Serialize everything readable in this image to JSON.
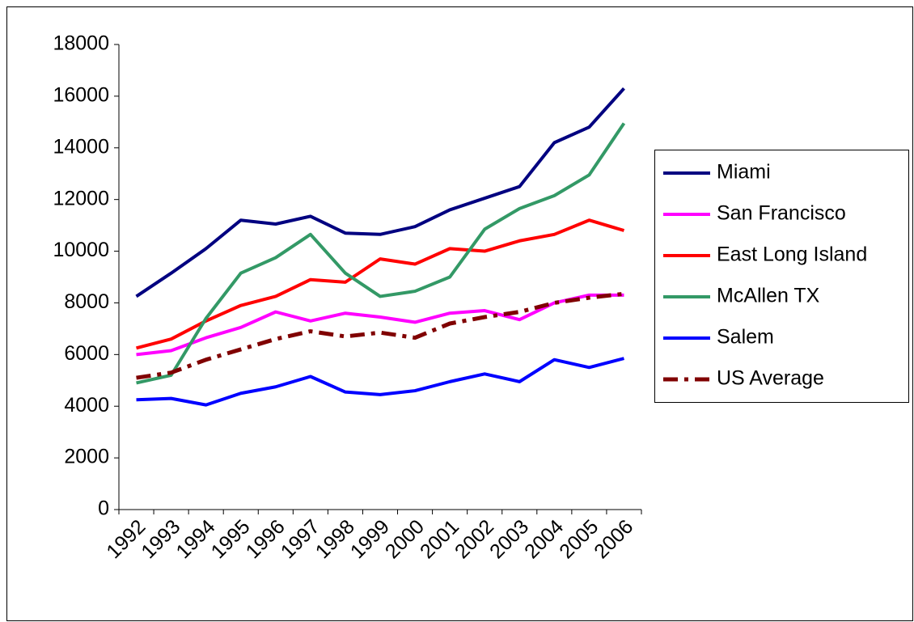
{
  "chart_data": {
    "type": "line",
    "categories": [
      "1992",
      "1993",
      "1994",
      "1995",
      "1996",
      "1997",
      "1998",
      "1999",
      "2000",
      "2001",
      "2002",
      "2003",
      "2004",
      "2005",
      "2006"
    ],
    "series": [
      {
        "name": "Miami",
        "color": "#000080",
        "values": [
          8250,
          9150,
          10100,
          11200,
          11050,
          11350,
          10700,
          10650,
          10950,
          11600,
          12050,
          12500,
          14200,
          14800,
          16300
        ]
      },
      {
        "name": "San Francisco",
        "color": "#ff00ff",
        "values": [
          6000,
          6150,
          6650,
          7050,
          7650,
          7300,
          7600,
          7450,
          7250,
          7600,
          7700,
          7350,
          8000,
          8300,
          8300
        ]
      },
      {
        "name": "East Long Island",
        "color": "#ff0000",
        "values": [
          6250,
          6600,
          7300,
          7900,
          8250,
          8900,
          8800,
          9700,
          9500,
          10100,
          10000,
          10400,
          10650,
          11200,
          10800
        ]
      },
      {
        "name": "McAllen TX",
        "color": "#339966",
        "values": [
          4900,
          5200,
          7400,
          9150,
          9750,
          10650,
          9150,
          8250,
          8450,
          9000,
          10850,
          11650,
          12150,
          12950,
          14950
        ]
      },
      {
        "name": "Salem",
        "color": "#0000ff",
        "values": [
          4250,
          4300,
          4050,
          4500,
          4750,
          5150,
          4550,
          4450,
          4600,
          4950,
          5250,
          4950,
          5800,
          5500,
          5850
        ]
      },
      {
        "name": "US Average",
        "color": "#800000",
        "dash": true,
        "values": [
          5100,
          5300,
          5800,
          6200,
          6600,
          6900,
          6700,
          6850,
          6650,
          7200,
          7450,
          7650,
          8000,
          8200,
          8350
        ]
      }
    ],
    "ylim": [
      0,
      18000
    ],
    "yticks": [
      0,
      2000,
      4000,
      6000,
      8000,
      10000,
      12000,
      14000,
      16000,
      18000
    ],
    "grid": false,
    "legend": "right"
  }
}
